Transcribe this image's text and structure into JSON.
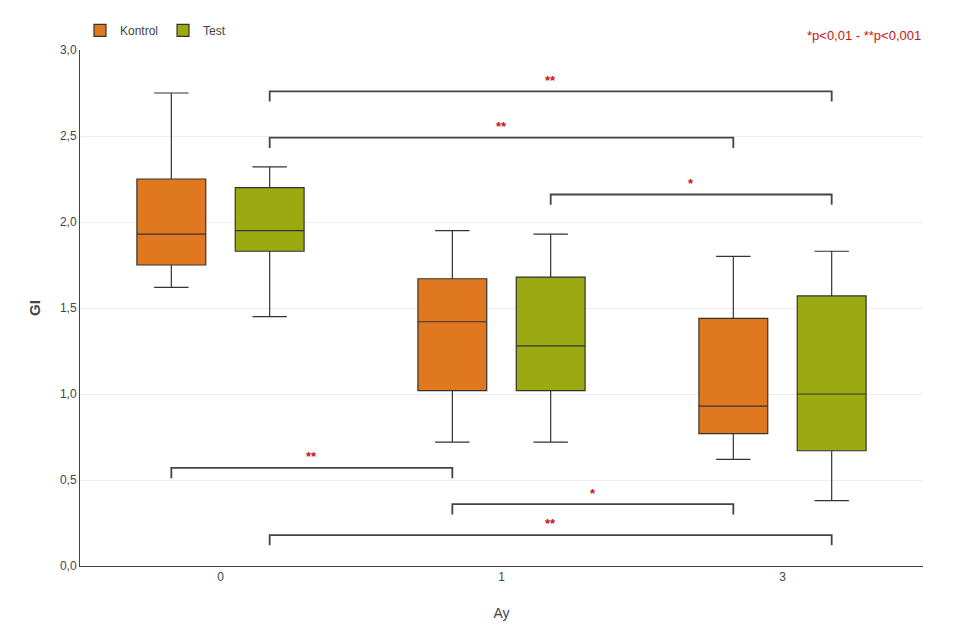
{
  "chart_data": {
    "type": "box",
    "xlabel": "Ay",
    "ylabel": "GI",
    "categories": [
      "0",
      "1",
      "3"
    ],
    "series": [
      {
        "name": "Kontrol",
        "color": "#e07820",
        "whislo": [
          1.62,
          0.72,
          0.62
        ],
        "q1": [
          1.75,
          1.02,
          0.77
        ],
        "median": [
          1.93,
          1.42,
          0.93
        ],
        "q3": [
          2.25,
          1.67,
          1.44
        ],
        "whishi": [
          2.75,
          1.95,
          1.8
        ]
      },
      {
        "name": "Test",
        "color": "#9aaa10",
        "whislo": [
          1.45,
          0.72,
          0.38
        ],
        "q1": [
          1.83,
          1.02,
          0.67
        ],
        "median": [
          1.95,
          1.28,
          1.0
        ],
        "q3": [
          2.2,
          1.68,
          1.57
        ],
        "whishi": [
          2.32,
          1.93,
          1.83
        ]
      }
    ],
    "ylim": [
      0.0,
      3.0
    ],
    "yticks": [
      {
        "value": 0.0,
        "label": "0,0"
      },
      {
        "value": 0.5,
        "label": "0,5"
      },
      {
        "value": 1.0,
        "label": "1,0"
      },
      {
        "value": 1.5,
        "label": "1,5"
      },
      {
        "value": 2.0,
        "label": "2,0"
      },
      {
        "value": 2.5,
        "label": "2,5"
      },
      {
        "value": 3.0,
        "label": "3,0"
      }
    ],
    "grid": true,
    "legend": "upper left",
    "annotations": [
      {
        "text": "*p<0,01 - **p<0,001",
        "color": "#cc1111"
      },
      {
        "text": "**",
        "color": "#cc1111",
        "side": "above",
        "from": {
          "series": "Test",
          "category": "0"
        },
        "to": {
          "series": "Test",
          "category": "3"
        }
      },
      {
        "text": "**",
        "color": "#cc1111",
        "side": "above",
        "from": {
          "series": "Test",
          "category": "0"
        },
        "to": {
          "series": "Kontrol",
          "category": "3"
        }
      },
      {
        "text": "*",
        "color": "#cc1111",
        "side": "above",
        "from": {
          "series": "Test",
          "category": "1"
        },
        "to": {
          "series": "Test",
          "category": "3"
        }
      },
      {
        "text": "**",
        "color": "#cc1111",
        "side": "below",
        "from": {
          "series": "Kontrol",
          "category": "0"
        },
        "to": {
          "series": "Kontrol",
          "category": "1"
        }
      },
      {
        "text": "*",
        "color": "#cc1111",
        "side": "below",
        "from": {
          "series": "Kontrol",
          "category": "1"
        },
        "to": {
          "series": "Kontrol",
          "category": "3"
        }
      },
      {
        "text": "**",
        "color": "#cc1111",
        "side": "below",
        "from": {
          "series": "Test",
          "category": "0"
        },
        "to": {
          "series": "Test",
          "category": "3"
        }
      }
    ]
  }
}
